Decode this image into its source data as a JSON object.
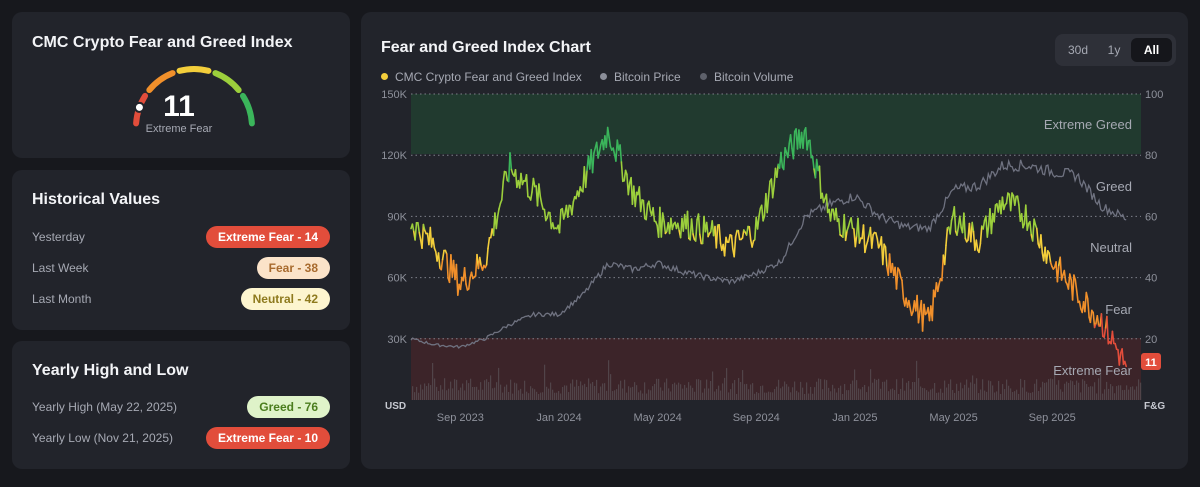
{
  "gauge_card": {
    "title": "CMC Crypto Fear and Greed Index",
    "value": "11",
    "label": "Extreme Fear"
  },
  "historical": {
    "title": "Historical Values",
    "rows": [
      {
        "label": "Yesterday",
        "badge": "Extreme Fear - 14"
      },
      {
        "label": "Last Week",
        "badge": "Fear - 38"
      },
      {
        "label": "Last Month",
        "badge": "Neutral - 42"
      }
    ]
  },
  "yearly": {
    "title": "Yearly High and Low",
    "rows": [
      {
        "label": "Yearly High",
        "date": "(May 22, 2025)",
        "badge": "Greed - 76"
      },
      {
        "label": "Yearly Low",
        "date": "(Nov 21, 2025)",
        "badge": "Extreme Fear - 10"
      }
    ]
  },
  "chart_card": {
    "title": "Fear and Greed Index Chart",
    "tabs": [
      {
        "label": "30d",
        "active": false
      },
      {
        "label": "1y",
        "active": false
      },
      {
        "label": "All",
        "active": true
      }
    ],
    "legend": [
      {
        "label": "CMC Crypto Fear and Greed Index",
        "color": "#f3ce3b"
      },
      {
        "label": "Bitcoin Price",
        "color": "#8b8e99"
      },
      {
        "label": "Bitcoin Volume",
        "color": "#5e616b"
      }
    ]
  },
  "colors": {
    "extreme_fear": "#e24d3b",
    "fear": "#f1902b",
    "neutral": "#f3ce3b",
    "greed": "#9ccf3c",
    "extreme_greed": "#3bb55b"
  },
  "chart_data": {
    "type": "line",
    "left_axis_label": "USD",
    "right_axis_label": "F&G",
    "left_ticks": [
      "150K",
      "120K",
      "90K",
      "60K",
      "30K"
    ],
    "right_ticks": [
      "100",
      "80",
      "60",
      "40",
      "20"
    ],
    "x_ticks": [
      "Sep 2023",
      "Jan 2024",
      "May 2024",
      "Sep 2024",
      "Jan 2025",
      "May 2025",
      "Sep 2025"
    ],
    "zones": [
      "Extreme Greed",
      "Greed",
      "Neutral",
      "Fear",
      "Extreme Fear"
    ],
    "ylim_usd": [
      0,
      150000
    ],
    "ylim_index": [
      0,
      100
    ],
    "current_value": "11",
    "grid": true,
    "series": [
      {
        "name": "CMC Crypto Fear and Greed Index",
        "x": [
          "2023-07",
          "2023-08",
          "2023-09",
          "2023-10",
          "2023-11",
          "2023-12",
          "2024-01",
          "2024-02",
          "2024-03",
          "2024-04",
          "2024-05",
          "2024-06",
          "2024-07",
          "2024-08",
          "2024-09",
          "2024-10",
          "2024-11",
          "2024-12",
          "2025-01",
          "2025-02",
          "2025-03",
          "2025-04",
          "2025-05",
          "2025-06",
          "2025-07",
          "2025-08",
          "2025-09",
          "2025-10",
          "2025-11",
          "2025-12"
        ],
        "values": [
          58,
          50,
          38,
          46,
          76,
          68,
          56,
          72,
          88,
          68,
          58,
          58,
          55,
          50,
          56,
          78,
          88,
          60,
          55,
          50,
          35,
          25,
          60,
          52,
          65,
          60,
          45,
          35,
          26,
          11
        ]
      },
      {
        "name": "Bitcoin Price",
        "x": [
          "2023-07",
          "2023-08",
          "2023-09",
          "2023-10",
          "2023-11",
          "2023-12",
          "2024-01",
          "2024-02",
          "2024-03",
          "2024-04",
          "2024-05",
          "2024-06",
          "2024-07",
          "2024-08",
          "2024-09",
          "2024-10",
          "2024-11",
          "2024-12",
          "2025-01",
          "2025-02",
          "2025-03",
          "2025-04",
          "2025-05",
          "2025-06",
          "2025-07",
          "2025-08",
          "2025-09",
          "2025-10",
          "2025-11",
          "2025-12"
        ],
        "values": [
          30000,
          27000,
          26000,
          30000,
          37000,
          42000,
          42000,
          52000,
          67000,
          64000,
          67000,
          63000,
          60000,
          58000,
          62000,
          68000,
          90000,
          96000,
          100000,
          90000,
          85000,
          84000,
          103000,
          105000,
          115000,
          115000,
          112000,
          110000,
          95000,
          89000
        ]
      }
    ]
  }
}
